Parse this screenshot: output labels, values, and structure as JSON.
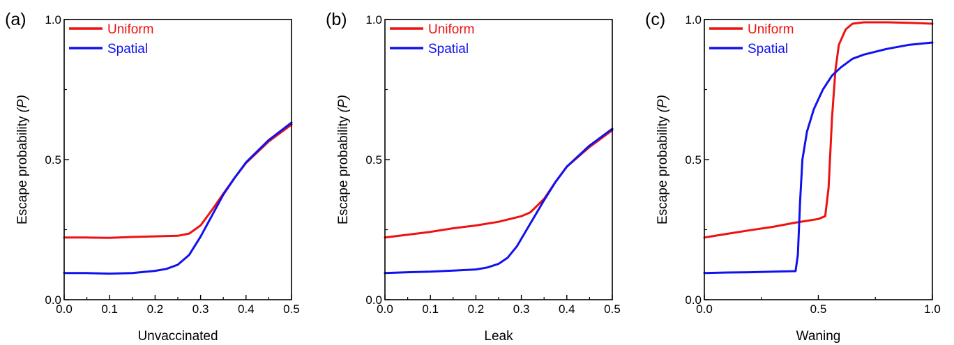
{
  "chart_data": [
    {
      "type": "line",
      "panel_label": "(a)",
      "xlabel": "Unvaccinated",
      "ylabel_main": "Escape probability ",
      "ylabel_var": "(P)",
      "xlim": [
        0,
        0.5
      ],
      "ylim": [
        0,
        1
      ],
      "xticks": [
        0.0,
        0.1,
        0.2,
        0.3,
        0.4,
        0.5
      ],
      "xtick_labels": [
        "0.0",
        "0.1",
        "0.2",
        "0.3",
        "0.4",
        "0.5"
      ],
      "yticks": [
        0.0,
        0.5,
        1.0
      ],
      "ytick_labels": [
        "0.0",
        "0.5",
        "1.0"
      ],
      "grid": false,
      "legend_position": "top-left",
      "series": [
        {
          "name": "Uniform",
          "color": "#ee1111",
          "x": [
            0,
            0.05,
            0.1,
            0.15,
            0.2,
            0.25,
            0.275,
            0.3,
            0.325,
            0.35,
            0.375,
            0.4,
            0.45,
            0.5
          ],
          "y": [
            0.222,
            0.222,
            0.221,
            0.224,
            0.226,
            0.228,
            0.236,
            0.265,
            0.32,
            0.378,
            0.435,
            0.488,
            0.565,
            0.625
          ]
        },
        {
          "name": "Spatial",
          "color": "#1111ee",
          "x": [
            0,
            0.05,
            0.1,
            0.15,
            0.2,
            0.225,
            0.25,
            0.275,
            0.3,
            0.325,
            0.35,
            0.375,
            0.4,
            0.45,
            0.5
          ],
          "y": [
            0.095,
            0.095,
            0.093,
            0.095,
            0.103,
            0.11,
            0.125,
            0.16,
            0.225,
            0.3,
            0.375,
            0.435,
            0.49,
            0.57,
            0.632
          ]
        }
      ]
    },
    {
      "type": "line",
      "panel_label": "(b)",
      "xlabel": "Leak",
      "ylabel_main": "Escape probability ",
      "ylabel_var": "(P)",
      "xlim": [
        0,
        0.5
      ],
      "ylim": [
        0,
        1
      ],
      "xticks": [
        0.0,
        0.1,
        0.2,
        0.3,
        0.4,
        0.5
      ],
      "xtick_labels": [
        "0.0",
        "0.1",
        "0.2",
        "0.3",
        "0.4",
        "0.5"
      ],
      "yticks": [
        0.0,
        0.5,
        1.0
      ],
      "ytick_labels": [
        "0.0",
        "0.5",
        "1.0"
      ],
      "grid": false,
      "legend_position": "top-left",
      "series": [
        {
          "name": "Uniform",
          "color": "#ee1111",
          "x": [
            0,
            0.05,
            0.1,
            0.15,
            0.2,
            0.25,
            0.3,
            0.32,
            0.35,
            0.375,
            0.4,
            0.45,
            0.5
          ],
          "y": [
            0.222,
            0.232,
            0.242,
            0.255,
            0.265,
            0.278,
            0.298,
            0.312,
            0.36,
            0.42,
            0.475,
            0.545,
            0.605
          ]
        },
        {
          "name": "Spatial",
          "color": "#1111ee",
          "x": [
            0,
            0.05,
            0.1,
            0.15,
            0.2,
            0.225,
            0.25,
            0.27,
            0.29,
            0.31,
            0.33,
            0.35,
            0.375,
            0.4,
            0.45,
            0.5
          ],
          "y": [
            0.095,
            0.098,
            0.1,
            0.104,
            0.108,
            0.115,
            0.128,
            0.15,
            0.19,
            0.245,
            0.3,
            0.355,
            0.42,
            0.475,
            0.55,
            0.61
          ]
        }
      ]
    },
    {
      "type": "line",
      "panel_label": "(c)",
      "xlabel": "Waning",
      "ylabel_main": "Escape probability ",
      "ylabel_var": "(P)",
      "xlim": [
        0,
        1
      ],
      "ylim": [
        0,
        1
      ],
      "xticks": [
        0.0,
        0.5,
        1.0
      ],
      "xtick_labels": [
        "0.0",
        "0.5",
        "1.0"
      ],
      "yticks": [
        0.0,
        0.5,
        1.0
      ],
      "ytick_labels": [
        "0.0",
        "0.5",
        "1.0"
      ],
      "grid": false,
      "legend_position": "top-left",
      "series": [
        {
          "name": "Uniform",
          "color": "#ee1111",
          "x": [
            0,
            0.1,
            0.2,
            0.3,
            0.4,
            0.5,
            0.53,
            0.545,
            0.56,
            0.575,
            0.59,
            0.62,
            0.65,
            0.7,
            0.8,
            0.9,
            1.0
          ],
          "y": [
            0.222,
            0.235,
            0.248,
            0.26,
            0.275,
            0.288,
            0.298,
            0.4,
            0.65,
            0.82,
            0.91,
            0.965,
            0.985,
            0.99,
            0.99,
            0.988,
            0.985
          ]
        },
        {
          "name": "Spatial",
          "color": "#1111ee",
          "x": [
            0,
            0.1,
            0.2,
            0.3,
            0.4,
            0.41,
            0.42,
            0.43,
            0.45,
            0.48,
            0.52,
            0.56,
            0.6,
            0.65,
            0.7,
            0.8,
            0.9,
            1.0
          ],
          "y": [
            0.095,
            0.097,
            0.098,
            0.1,
            0.102,
            0.16,
            0.35,
            0.5,
            0.6,
            0.68,
            0.75,
            0.8,
            0.83,
            0.86,
            0.875,
            0.895,
            0.91,
            0.918
          ]
        }
      ]
    }
  ]
}
